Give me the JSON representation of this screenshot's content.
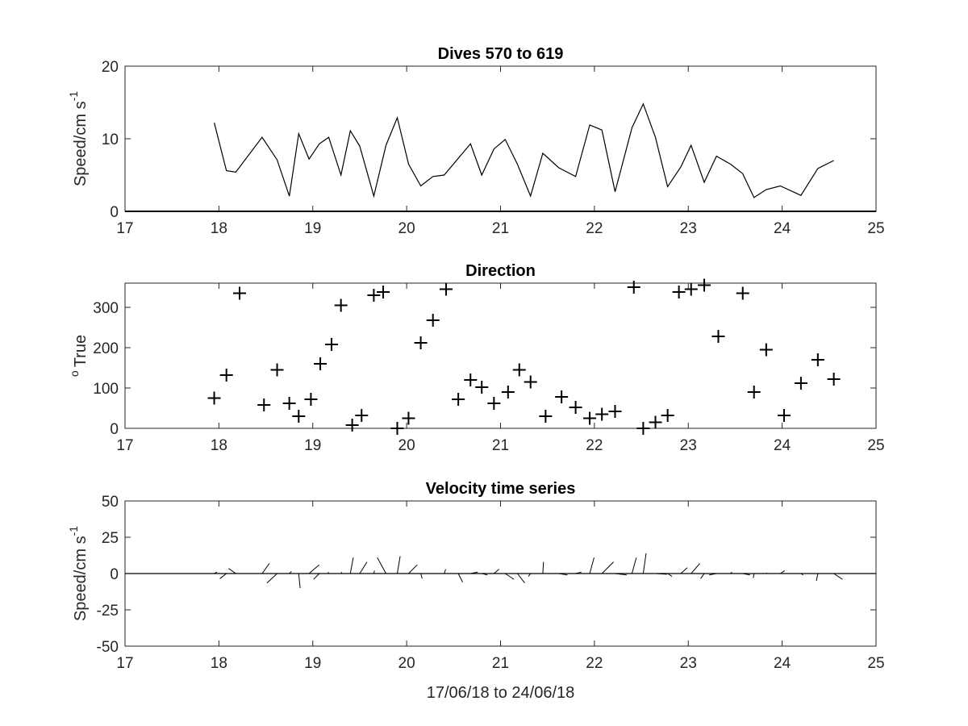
{
  "figure": {
    "background": "#ffffff",
    "axis_color": "#262626",
    "line_color": "#000000"
  },
  "chart_data": [
    {
      "type": "line",
      "title": "Dives 570 to 619",
      "ylabel_main": "Speed/cm s",
      "ylabel_sup": "-1",
      "xlim": [
        17,
        25
      ],
      "ylim": [
        0,
        20
      ],
      "xticks": [
        17,
        18,
        19,
        20,
        21,
        22,
        23,
        24,
        25
      ],
      "yticks": [
        0,
        10,
        20
      ],
      "x": [
        17.95,
        18.08,
        18.18,
        18.46,
        18.62,
        18.75,
        18.85,
        18.96,
        19.07,
        19.17,
        19.3,
        19.4,
        19.5,
        19.65,
        19.78,
        19.9,
        20.02,
        20.15,
        20.28,
        20.4,
        20.55,
        20.68,
        20.8,
        20.93,
        21.05,
        21.18,
        21.32,
        21.45,
        21.62,
        21.8,
        21.95,
        22.08,
        22.22,
        22.4,
        22.52,
        22.65,
        22.78,
        22.92,
        23.03,
        23.17,
        23.3,
        23.45,
        23.58,
        23.7,
        23.83,
        23.98,
        24.2,
        24.38,
        24.55
      ],
      "y": [
        12.2,
        5.6,
        5.4,
        10.2,
        7.1,
        2.1,
        10.7,
        7.2,
        9.3,
        10.2,
        5.0,
        11.1,
        9.0,
        2.1,
        9.1,
        12.9,
        6.5,
        3.5,
        4.8,
        5.0,
        7.3,
        9.3,
        5.0,
        8.6,
        9.9,
        6.5,
        2.1,
        8.0,
        6.0,
        4.8,
        11.9,
        11.2,
        2.7,
        11.5,
        14.8,
        10.2,
        3.4,
        6.1,
        9.1,
        4.0,
        7.6,
        6.5,
        5.2,
        1.9,
        3.0,
        3.5,
        2.2,
        5.9,
        7.0
      ]
    },
    {
      "type": "scatter",
      "title": "Direction",
      "ylabel_main": "True",
      "ylabel_sup": "o",
      "xlim": [
        17,
        25
      ],
      "ylim": [
        0,
        360
      ],
      "xticks": [
        17,
        18,
        19,
        20,
        21,
        22,
        23,
        24,
        25
      ],
      "yticks": [
        0,
        100,
        200,
        300
      ],
      "marker": "+",
      "x": [
        17.95,
        18.08,
        18.22,
        18.48,
        18.62,
        18.75,
        18.85,
        18.98,
        19.08,
        19.2,
        19.3,
        19.42,
        19.52,
        19.65,
        19.75,
        19.9,
        20.02,
        20.15,
        20.28,
        20.42,
        20.55,
        20.68,
        20.8,
        20.93,
        21.08,
        21.2,
        21.32,
        21.48,
        21.65,
        21.8,
        21.95,
        22.08,
        22.22,
        22.42,
        22.52,
        22.65,
        22.78,
        22.9,
        23.03,
        23.17,
        23.32,
        23.58,
        23.7,
        23.83,
        24.02,
        24.2,
        24.38,
        24.55
      ],
      "y": [
        75,
        132,
        335,
        58,
        145,
        62,
        30,
        72,
        160,
        208,
        305,
        8,
        32,
        330,
        338,
        0,
        25,
        212,
        268,
        345,
        72,
        120,
        102,
        62,
        90,
        145,
        115,
        30,
        78,
        52,
        25,
        35,
        42,
        350,
        0,
        15,
        32,
        338,
        345,
        355,
        228,
        335,
        90,
        195,
        32,
        112,
        170,
        122
      ]
    },
    {
      "type": "line",
      "subtype": "stick-vector",
      "title": "Velocity time series",
      "ylabel_main": "Speed/cm s",
      "ylabel_sup": "-1",
      "xlabel": "17/06/18 to 24/06/18",
      "xlim": [
        17,
        25
      ],
      "ylim": [
        -50,
        50
      ],
      "xticks": [
        17,
        18,
        19,
        20,
        21,
        22,
        23,
        24,
        25
      ],
      "yticks": [
        -50,
        -25,
        0,
        25,
        50
      ],
      "x": [
        17.95,
        18.08,
        18.18,
        18.46,
        18.62,
        18.75,
        18.85,
        18.96,
        19.07,
        19.17,
        19.3,
        19.4,
        19.5,
        19.65,
        19.78,
        19.9,
        20.02,
        20.15,
        20.28,
        20.4,
        20.55,
        20.68,
        20.8,
        20.93,
        21.05,
        21.18,
        21.32,
        21.45,
        21.62,
        21.8,
        21.95,
        22.08,
        22.22,
        22.4,
        22.52,
        22.65,
        22.78,
        22.92,
        23.03,
        23.17,
        23.3,
        23.45,
        23.58,
        23.7,
        23.83,
        23.98,
        24.2,
        24.38,
        24.55
      ],
      "u": [
        2.0,
        -4.5,
        -5.0,
        5.0,
        -7.0,
        1.5,
        1.0,
        7.0,
        -4.0,
        -0.5,
        0.5,
        2.0,
        5.0,
        0.5,
        -6.0,
        2.0,
        6.0,
        1.0,
        0.5,
        1.0,
        3.0,
        5.0,
        4.0,
        3.5,
        6.0,
        5.0,
        -1.5,
        0.5,
        6.0,
        4.0,
        3.0,
        8.0,
        8.0,
        3.0,
        2.0,
        8.0,
        3.0,
        4.5,
        6.0,
        -2.5,
        -5.0,
        1.0,
        5.0,
        -0.5,
        0.5,
        3.0,
        1.5,
        -1.0,
        6.0
      ],
      "v": [
        1.0,
        -3.5,
        3.5,
        7.0,
        -6.5,
        1.5,
        -10.0,
        6.0,
        -4.0,
        1.0,
        1.0,
        11.0,
        8.0,
        2.0,
        11.0,
        12.0,
        6.0,
        -3.5,
        0.0,
        3.0,
        -6.0,
        1.0,
        -1.0,
        3.0,
        -4.0,
        -6.5,
        -2.0,
        8.0,
        -1.0,
        1.0,
        11.0,
        8.0,
        -1.0,
        11.0,
        14.0,
        -0.5,
        -2.0,
        4.0,
        7.0,
        -3.5,
        -1.0,
        1.0,
        -1.0,
        -3.0,
        0.5,
        2.0,
        -1.0,
        -5.0,
        -4.0
      ]
    }
  ]
}
